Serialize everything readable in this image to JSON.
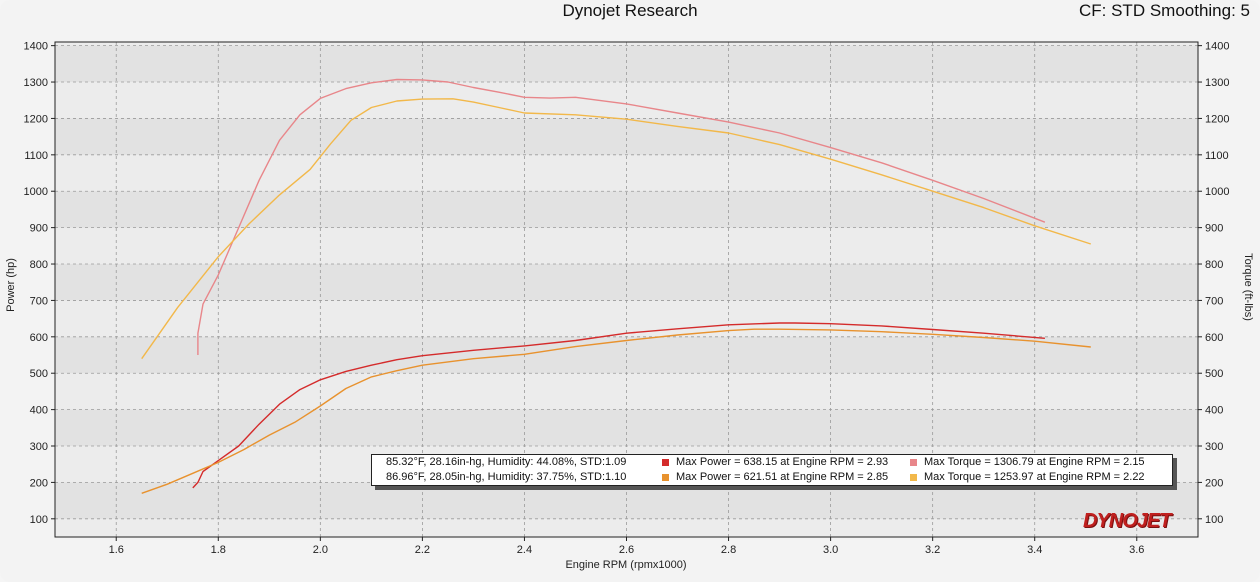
{
  "header": {
    "title": "Dynojet Research",
    "right_label": "CF: STD Smoothing: 5"
  },
  "brand_logo": "DYNOJET",
  "colors": {
    "run1_power": "#d42b2b",
    "run1_torque": "#e8868a",
    "run2_power": "#e8922e",
    "run2_torque": "#f2b84a",
    "grid": "#9a9a9a",
    "band_light": "#ececec",
    "band_dark": "#dcdcdc"
  },
  "legend": {
    "rows": [
      {
        "conditions": "85.32°F, 28.16in-hg, Humidity: 44.08%, STD:1.09",
        "max_power": "Max Power = 638.15 at Engine RPM = 2.93",
        "max_torque": "Max Torque = 1306.79 at Engine RPM = 2.15",
        "power_color": "#d42b2b",
        "torque_color": "#e8868a"
      },
      {
        "conditions": "86.96°F, 28.05in-hg, Humidity: 37.75%, STD:1.10",
        "max_power": "Max Power = 621.51 at Engine RPM = 2.85",
        "max_torque": "Max Torque = 1253.97 at Engine RPM = 2.22",
        "power_color": "#e8922e",
        "torque_color": "#f2b84a"
      }
    ]
  },
  "chart_data": {
    "type": "line",
    "xlabel": "Engine RPM (rpmx1000)",
    "ylabel": "Power (hp)",
    "y2label": "Torque (ft-lbs)",
    "xlim": [
      1.48,
      3.72
    ],
    "ylim": [
      50,
      1410
    ],
    "y2lim": [
      50,
      1410
    ],
    "x_ticks": [
      "1.6",
      "1.8",
      "2.0",
      "2.2",
      "2.4",
      "2.6",
      "2.8",
      "3.0",
      "3.2",
      "3.4",
      "3.6"
    ],
    "y_ticks": [
      "100",
      "200",
      "300",
      "400",
      "500",
      "600",
      "700",
      "800",
      "900",
      "1000",
      "1100",
      "1200",
      "1300",
      "1400"
    ],
    "grid": true,
    "series": [
      {
        "key": "run1_torque",
        "axis": "right",
        "points": [
          [
            1.76,
            550
          ],
          [
            1.76,
            610
          ],
          [
            1.77,
            690
          ],
          [
            1.8,
            770
          ],
          [
            1.84,
            900
          ],
          [
            1.88,
            1030
          ],
          [
            1.92,
            1140
          ],
          [
            1.96,
            1210
          ],
          [
            2.0,
            1255
          ],
          [
            2.05,
            1282
          ],
          [
            2.1,
            1298
          ],
          [
            2.15,
            1307
          ],
          [
            2.2,
            1306
          ],
          [
            2.25,
            1300
          ],
          [
            2.3,
            1285
          ],
          [
            2.35,
            1272
          ],
          [
            2.4,
            1258
          ],
          [
            2.45,
            1256
          ],
          [
            2.5,
            1258
          ],
          [
            2.6,
            1240
          ],
          [
            2.7,
            1215
          ],
          [
            2.8,
            1190
          ],
          [
            2.9,
            1160
          ],
          [
            3.0,
            1120
          ],
          [
            3.1,
            1078
          ],
          [
            3.2,
            1030
          ],
          [
            3.3,
            980
          ],
          [
            3.42,
            915
          ]
        ]
      },
      {
        "key": "run2_torque",
        "axis": "right",
        "points": [
          [
            1.65,
            540
          ],
          [
            1.68,
            600
          ],
          [
            1.72,
            680
          ],
          [
            1.76,
            750
          ],
          [
            1.8,
            820
          ],
          [
            1.86,
            910
          ],
          [
            1.92,
            990
          ],
          [
            1.98,
            1060
          ],
          [
            2.02,
            1130
          ],
          [
            2.06,
            1195
          ],
          [
            2.1,
            1230
          ],
          [
            2.15,
            1248
          ],
          [
            2.2,
            1253
          ],
          [
            2.26,
            1254
          ],
          [
            2.3,
            1245
          ],
          [
            2.35,
            1230
          ],
          [
            2.4,
            1215
          ],
          [
            2.5,
            1210
          ],
          [
            2.6,
            1198
          ],
          [
            2.7,
            1178
          ],
          [
            2.8,
            1160
          ],
          [
            2.9,
            1128
          ],
          [
            3.0,
            1088
          ],
          [
            3.1,
            1045
          ],
          [
            3.2,
            1000
          ],
          [
            3.3,
            955
          ],
          [
            3.4,
            905
          ],
          [
            3.51,
            855
          ]
        ]
      },
      {
        "key": "run1_power",
        "axis": "left",
        "points": [
          [
            1.75,
            185
          ],
          [
            1.76,
            200
          ],
          [
            1.77,
            230
          ],
          [
            1.8,
            260
          ],
          [
            1.84,
            300
          ],
          [
            1.88,
            360
          ],
          [
            1.92,
            415
          ],
          [
            1.96,
            455
          ],
          [
            2.0,
            482
          ],
          [
            2.05,
            505
          ],
          [
            2.1,
            522
          ],
          [
            2.15,
            537
          ],
          [
            2.2,
            548
          ],
          [
            2.3,
            563
          ],
          [
            2.4,
            575
          ],
          [
            2.5,
            590
          ],
          [
            2.6,
            610
          ],
          [
            2.7,
            622
          ],
          [
            2.8,
            633
          ],
          [
            2.9,
            638
          ],
          [
            2.93,
            638
          ],
          [
            3.0,
            636
          ],
          [
            3.1,
            630
          ],
          [
            3.2,
            620
          ],
          [
            3.3,
            610
          ],
          [
            3.42,
            596
          ]
        ]
      },
      {
        "key": "run2_power",
        "axis": "left",
        "points": [
          [
            1.65,
            170
          ],
          [
            1.7,
            195
          ],
          [
            1.75,
            225
          ],
          [
            1.8,
            255
          ],
          [
            1.85,
            290
          ],
          [
            1.9,
            330
          ],
          [
            1.95,
            365
          ],
          [
            2.0,
            410
          ],
          [
            2.05,
            458
          ],
          [
            2.1,
            490
          ],
          [
            2.15,
            507
          ],
          [
            2.2,
            522
          ],
          [
            2.3,
            540
          ],
          [
            2.4,
            552
          ],
          [
            2.5,
            573
          ],
          [
            2.6,
            590
          ],
          [
            2.7,
            605
          ],
          [
            2.8,
            617
          ],
          [
            2.85,
            621
          ],
          [
            2.9,
            621
          ],
          [
            3.0,
            619
          ],
          [
            3.1,
            614
          ],
          [
            3.2,
            607
          ],
          [
            3.3,
            598
          ],
          [
            3.4,
            588
          ],
          [
            3.51,
            572
          ]
        ]
      }
    ]
  }
}
